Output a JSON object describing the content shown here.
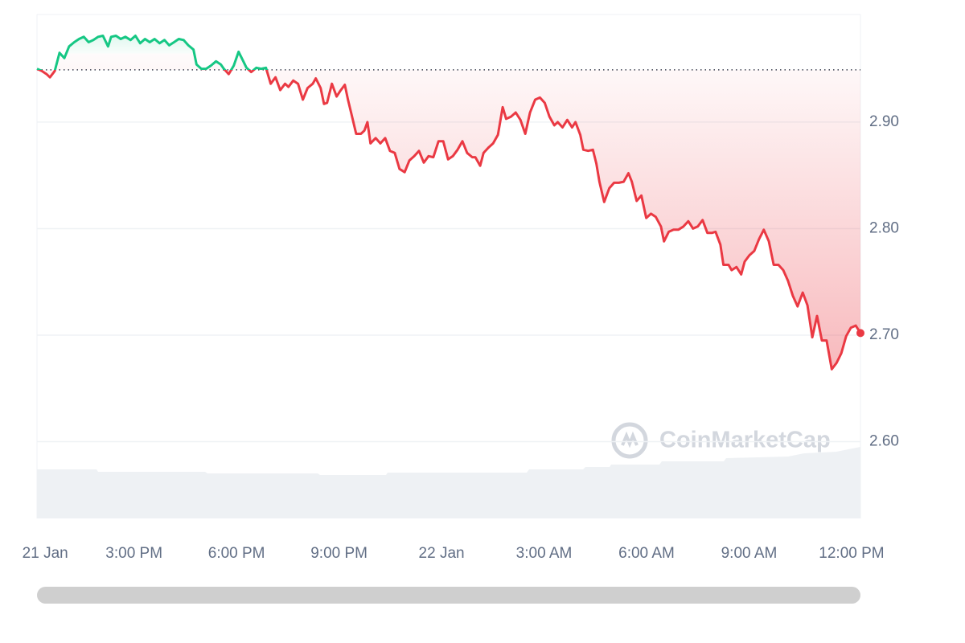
{
  "chart_data": {
    "type": "line",
    "watermark": "CoinMarketCap",
    "x": [
      12.16,
      12.3,
      12.44,
      12.54,
      12.68,
      12.82,
      12.96,
      13.1,
      13.25,
      13.39,
      13.53,
      13.67,
      13.81,
      13.95,
      14.09,
      14.24,
      14.33,
      14.47,
      14.61,
      14.75,
      14.9,
      15.04,
      15.18,
      15.32,
      15.46,
      15.6,
      15.75,
      15.89,
      16.03,
      16.17,
      16.31,
      16.45,
      16.59,
      16.74,
      16.83,
      16.97,
      17.11,
      17.25,
      17.4,
      17.54,
      17.63,
      17.77,
      17.92,
      18.06,
      18.2,
      18.29,
      18.43,
      18.58,
      18.72,
      18.86,
      19.0,
      19.14,
      19.28,
      19.42,
      19.52,
      19.66,
      19.8,
      19.94,
      20.08,
      20.23,
      20.32,
      20.46,
      20.56,
      20.65,
      20.79,
      20.93,
      21.03,
      21.17,
      21.26,
      21.36,
      21.5,
      21.64,
      21.74,
      21.83,
      21.92,
      22.07,
      22.21,
      22.35,
      22.49,
      22.63,
      22.77,
      22.92,
      23.06,
      23.2,
      23.34,
      23.48,
      23.62,
      23.76,
      23.91,
      24.05,
      24.19,
      24.33,
      24.47,
      24.61,
      24.75,
      24.9,
      24.99,
      25.13,
      25.23,
      25.37,
      25.51,
      25.65,
      25.79,
      25.89,
      26.03,
      26.17,
      26.31,
      26.45,
      26.59,
      26.74,
      26.88,
      27.02,
      27.16,
      27.3,
      27.4,
      27.54,
      27.68,
      27.82,
      27.92,
      28.06,
      28.15,
      28.29,
      28.43,
      28.53,
      28.62,
      28.76,
      28.91,
      29.05,
      29.19,
      29.33,
      29.47,
      29.57,
      29.71,
      29.85,
      29.99,
      30.13,
      30.27,
      30.42,
      30.51,
      30.65,
      30.79,
      30.93,
      31.08,
      31.22,
      31.36,
      31.5,
      31.64,
      31.78,
      31.92,
      32.02,
      32.16,
      32.25,
      32.4,
      32.49,
      32.63,
      32.77,
      32.87,
      33.01,
      33.15,
      33.29,
      33.43,
      33.58,
      33.72,
      33.86,
      34.0,
      34.14,
      34.28,
      34.42,
      34.57,
      34.71,
      34.85,
      34.99,
      35.13,
      35.27,
      35.42,
      35.56,
      35.7,
      35.84,
      35.98,
      36.12,
      36.26
    ],
    "values": [
      2.95,
      2.948,
      2.945,
      2.942,
      2.948,
      2.965,
      2.96,
      2.971,
      2.975,
      2.978,
      2.98,
      2.975,
      2.977,
      2.98,
      2.981,
      2.971,
      2.98,
      2.981,
      2.978,
      2.98,
      2.977,
      2.981,
      2.974,
      2.978,
      2.975,
      2.978,
      2.974,
      2.977,
      2.972,
      2.975,
      2.978,
      2.977,
      2.972,
      2.968,
      2.954,
      2.95,
      2.95,
      2.953,
      2.957,
      2.954,
      2.95,
      2.945,
      2.953,
      2.966,
      2.957,
      2.951,
      2.947,
      2.951,
      2.95,
      2.951,
      2.936,
      2.942,
      2.93,
      2.936,
      2.933,
      2.939,
      2.936,
      2.921,
      2.932,
      2.936,
      2.941,
      2.932,
      2.917,
      2.918,
      2.936,
      2.924,
      2.929,
      2.935,
      2.921,
      2.908,
      2.889,
      2.889,
      2.892,
      2.9,
      2.88,
      2.885,
      2.88,
      2.885,
      2.873,
      2.871,
      2.856,
      2.853,
      2.864,
      2.868,
      2.873,
      2.862,
      2.868,
      2.867,
      2.882,
      2.882,
      2.865,
      2.868,
      2.874,
      2.882,
      2.871,
      2.867,
      2.867,
      2.859,
      2.871,
      2.876,
      2.88,
      2.888,
      2.914,
      2.903,
      2.905,
      2.909,
      2.902,
      2.889,
      2.909,
      2.921,
      2.923,
      2.918,
      2.905,
      2.897,
      2.9,
      2.895,
      2.902,
      2.895,
      2.9,
      2.888,
      2.874,
      2.873,
      2.874,
      2.861,
      2.844,
      2.825,
      2.838,
      2.843,
      2.843,
      2.844,
      2.852,
      2.844,
      2.826,
      2.831,
      2.81,
      2.814,
      2.811,
      2.802,
      2.788,
      2.797,
      2.799,
      2.799,
      2.802,
      2.807,
      2.8,
      2.802,
      2.808,
      2.796,
      2.796,
      2.797,
      2.785,
      2.766,
      2.766,
      2.761,
      2.764,
      2.757,
      2.769,
      2.775,
      2.779,
      2.79,
      2.799,
      2.788,
      2.766,
      2.766,
      2.761,
      2.751,
      2.737,
      2.727,
      2.74,
      2.728,
      2.698,
      2.718,
      2.695,
      2.695,
      2.668,
      2.674,
      2.683,
      2.699,
      2.707,
      2.709,
      2.702
    ],
    "reference_line": 2.949,
    "up_color": "#16c784",
    "down_color": "#ea3943",
    "xlim": [
      12.16,
      36.26
    ],
    "xticks": [
      {
        "value": 12.4,
        "label": "21 Jan"
      },
      {
        "value": 15,
        "label": "3:00 PM"
      },
      {
        "value": 18,
        "label": "6:00 PM"
      },
      {
        "value": 21,
        "label": "9:00 PM"
      },
      {
        "value": 24,
        "label": "22 Jan"
      },
      {
        "value": 27,
        "label": "3:00 AM"
      },
      {
        "value": 30,
        "label": "6:00 AM"
      },
      {
        "value": 33,
        "label": "9:00 AM"
      },
      {
        "value": 36,
        "label": "12:00 PM"
      }
    ],
    "ylim": [
      2.528,
      3.001
    ],
    "yticks": [
      {
        "value": 2.6,
        "label": "2.60"
      },
      {
        "value": 2.7,
        "label": "2.70"
      },
      {
        "value": 2.8,
        "label": "2.80"
      },
      {
        "value": 2.9,
        "label": "2.90"
      }
    ],
    "grid": true
  }
}
